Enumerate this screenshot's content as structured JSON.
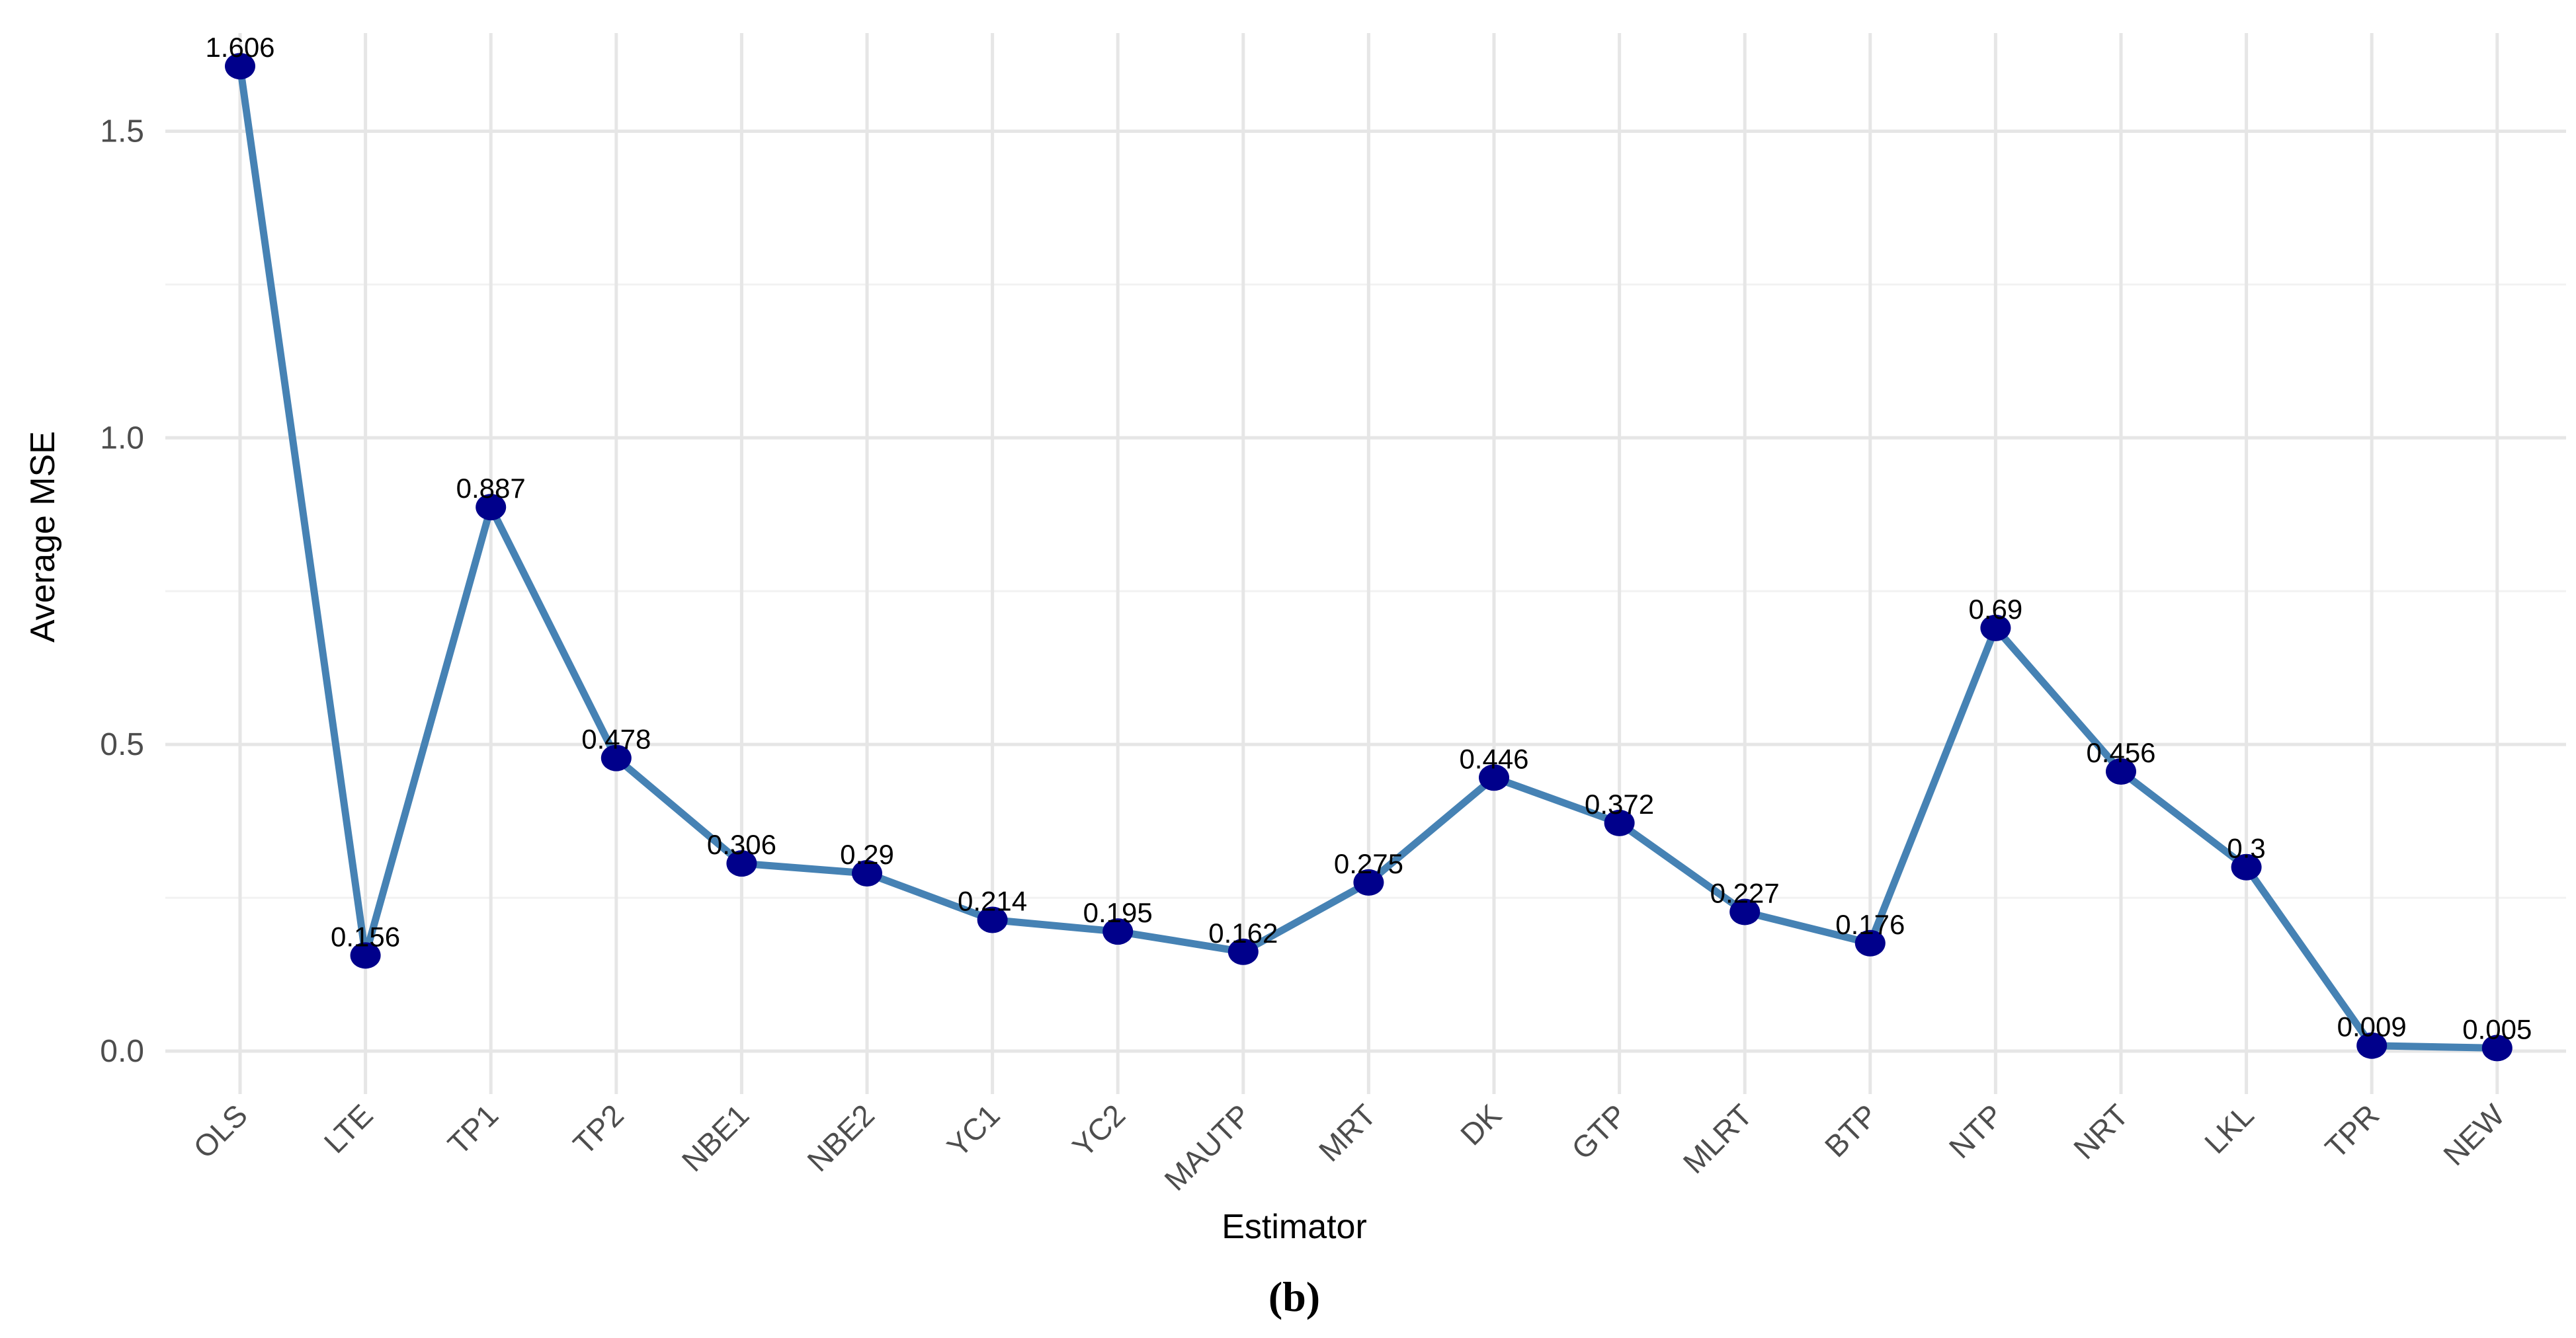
{
  "chart_data": {
    "type": "line",
    "caption": "(b)",
    "xlabel": "Estimator",
    "ylabel": "Average MSE",
    "categories": [
      "OLS",
      "LTE",
      "TP1",
      "TP2",
      "NBE1",
      "NBE2",
      "YC1",
      "YC2",
      "MAUTP",
      "MRT",
      "DK",
      "GTP",
      "MLRT",
      "BTP",
      "NTP",
      "NRT",
      "LKL",
      "TPR",
      "NEW"
    ],
    "values": [
      1.606,
      0.156,
      0.887,
      0.478,
      0.306,
      0.29,
      0.214,
      0.195,
      0.162,
      0.275,
      0.446,
      0.372,
      0.227,
      0.176,
      0.69,
      0.456,
      0.3,
      0.009,
      0.005
    ],
    "value_labels": [
      "1.606",
      "0.156",
      "0.887",
      "0.478",
      "0.306",
      "0.29",
      "0.214",
      "0.195",
      "0.162",
      "0.275",
      "0.446",
      "0.372",
      "0.227",
      "0.176",
      "0.69",
      "0.456",
      "0.3",
      "0.009",
      "0.005"
    ],
    "yticks": [
      0.0,
      0.5,
      1.0,
      1.5
    ],
    "ytick_labels": [
      "0.0",
      "0.5",
      "1.0",
      "1.5"
    ],
    "ylim": [
      -0.07,
      1.66
    ],
    "grid": true,
    "legend": "none",
    "colors": {
      "line": "#4682b4",
      "point": "#00008b",
      "grid_major": "#e6e6e6",
      "grid_minor": "#f2f2f2"
    }
  }
}
